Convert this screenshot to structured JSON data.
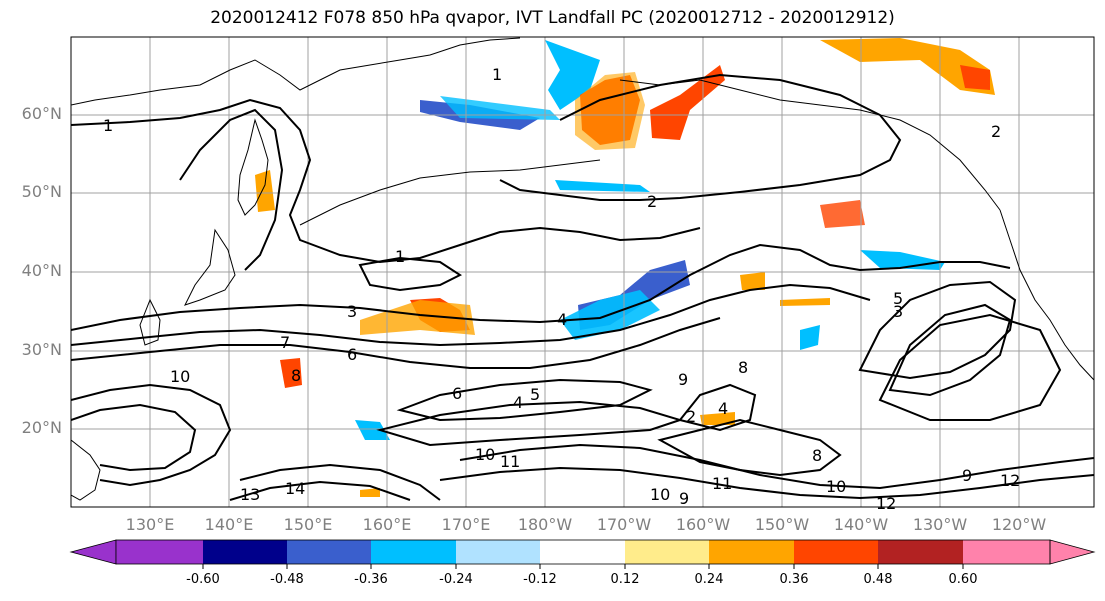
{
  "title": "2020012412 F078 850 hPa qvapor, IVT Landfall PC (2020012712 - 2020012912)",
  "lat_labels": [
    "60°N",
    "50°N",
    "40°N",
    "30°N",
    "20°N"
  ],
  "lon_labels": [
    "130°E",
    "140°E",
    "150°E",
    "160°E",
    "170°E",
    "180°W",
    "170°W",
    "160°W",
    "150°W",
    "140°W",
    "130°W",
    "120°W"
  ],
  "colorbar": {
    "colors": [
      "#9932CC",
      "#00008B",
      "#3A5FCD",
      "#00BFFF",
      "#B0E2FF",
      "#FFFFFF",
      "#FFEC8B",
      "#FFA500",
      "#FF4500",
      "#B22222",
      "#FF82AB"
    ],
    "tick_labels": [
      "-0.60",
      "-0.48",
      "-0.36",
      "-0.24",
      "-0.12",
      "0.12",
      "0.24",
      "0.36",
      "0.48",
      "0.60"
    ]
  },
  "contour_labels": [
    "1",
    "1",
    "2",
    "1",
    "3",
    "4",
    "2",
    "3",
    "5",
    "6",
    "7",
    "10",
    "8",
    "6",
    "4",
    "5",
    "8",
    "9",
    "4",
    "2",
    "11",
    "10",
    "9",
    "11",
    "10",
    "12",
    "13",
    "14",
    "12",
    "9",
    "8",
    "10"
  ],
  "colors": {
    "coast": "#000000",
    "contour": "#000000",
    "grid": "#a0a0a0"
  }
}
